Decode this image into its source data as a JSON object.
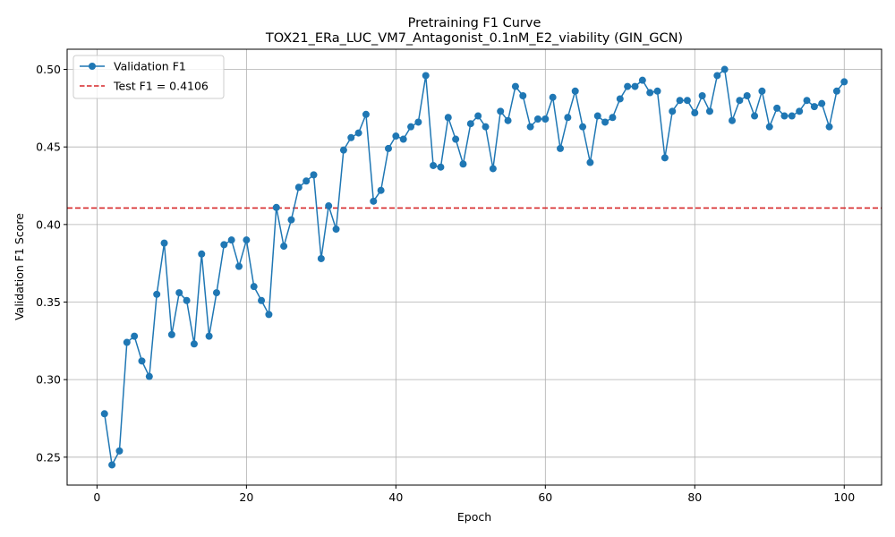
{
  "chart_data": {
    "type": "line",
    "title": "Pretraining F1 Curve",
    "subtitle": "TOX21_ERa_LUC_VM7_Antagonist_0.1nM_E2_viability (GIN_GCN)",
    "xlabel": "Epoch",
    "ylabel": "Validation F1 Score",
    "xlim": [
      -4,
      105
    ],
    "ylim": [
      0.232,
      0.513
    ],
    "xticks": [
      0,
      20,
      40,
      60,
      80,
      100
    ],
    "yticks": [
      0.25,
      0.3,
      0.35,
      0.4,
      0.45,
      0.5
    ],
    "grid": true,
    "legend_position": "top-left",
    "series": [
      {
        "name": "Validation F1",
        "color": "#1f77b4",
        "marker": "circle",
        "x": [
          1,
          2,
          3,
          4,
          5,
          6,
          7,
          8,
          9,
          10,
          11,
          12,
          13,
          14,
          15,
          16,
          17,
          18,
          19,
          20,
          21,
          22,
          23,
          24,
          25,
          26,
          27,
          28,
          29,
          30,
          31,
          32,
          33,
          34,
          35,
          36,
          37,
          38,
          39,
          40,
          41,
          42,
          43,
          44,
          45,
          46,
          47,
          48,
          49,
          50,
          51,
          52,
          53,
          54,
          55,
          56,
          57,
          58,
          59,
          60,
          61,
          62,
          63,
          64,
          65,
          66,
          67,
          68,
          69,
          70,
          71,
          72,
          73,
          74,
          75,
          76,
          77,
          78,
          79,
          80,
          81,
          82,
          83,
          84,
          85,
          86,
          87,
          88,
          89,
          90,
          91,
          92,
          93,
          94,
          95,
          96,
          97,
          98,
          99,
          100
        ],
        "values": [
          0.278,
          0.245,
          0.254,
          0.324,
          0.328,
          0.312,
          0.302,
          0.355,
          0.388,
          0.329,
          0.356,
          0.351,
          0.323,
          0.381,
          0.328,
          0.356,
          0.387,
          0.39,
          0.373,
          0.39,
          0.36,
          0.351,
          0.342,
          0.411,
          0.386,
          0.403,
          0.424,
          0.428,
          0.432,
          0.378,
          0.412,
          0.397,
          0.448,
          0.456,
          0.459,
          0.471,
          0.415,
          0.422,
          0.449,
          0.457,
          0.455,
          0.463,
          0.466,
          0.496,
          0.438,
          0.437,
          0.469,
          0.455,
          0.439,
          0.465,
          0.47,
          0.463,
          0.436,
          0.473,
          0.467,
          0.489,
          0.483,
          0.463,
          0.468,
          0.468,
          0.482,
          0.449,
          0.469,
          0.486,
          0.463,
          0.44,
          0.47,
          0.466,
          0.469,
          0.481,
          0.489,
          0.489,
          0.493,
          0.485,
          0.486,
          0.443,
          0.473,
          0.48,
          0.48,
          0.472,
          0.483,
          0.473,
          0.496,
          0.5,
          0.467,
          0.48,
          0.483,
          0.47,
          0.486,
          0.463,
          0.475,
          0.47,
          0.47,
          0.473,
          0.48,
          0.476,
          0.478,
          0.463,
          0.486,
          0.492
        ]
      },
      {
        "name": "Test F1 = 0.4106",
        "color": "#d62728",
        "style": "dashed",
        "y": 0.4106
      }
    ]
  }
}
